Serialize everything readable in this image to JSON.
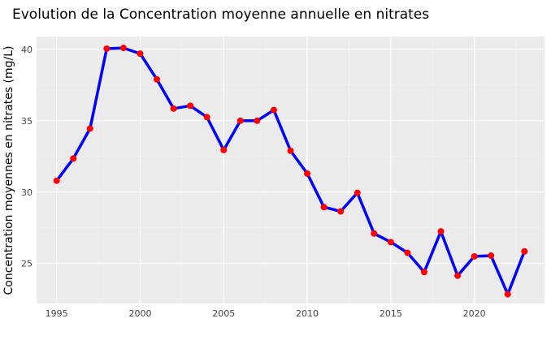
{
  "chart_data": {
    "type": "line",
    "title": "Evolution de la Concentration moyenne annuelle en nitrates",
    "xlabel": "",
    "ylabel": "Concentration moyennes en nitrates (mg/L)",
    "xlim": [
      1993.8,
      2024.2
    ],
    "ylim": [
      22.2,
      40.9
    ],
    "x_ticks": [
      1995,
      2000,
      2005,
      2010,
      2015,
      2020
    ],
    "y_ticks": [
      25,
      30,
      35,
      40
    ],
    "grid": true,
    "line_color": "#0000ff",
    "marker_color": "#ff0000",
    "plot_background": "#ebebeb",
    "series": [
      {
        "x": [
          1995,
          1996,
          1997,
          1998,
          1999,
          2000,
          2001,
          2002,
          2003,
          2004,
          2005,
          2006,
          2007,
          2008,
          2009,
          2010,
          2011,
          2012,
          2013,
          2014,
          2015,
          2016,
          2017,
          2018,
          2019,
          2020,
          2021,
          2022,
          2023
        ],
        "y": [
          30.8,
          32.35,
          34.45,
          40.05,
          40.1,
          39.7,
          37.9,
          35.85,
          36.05,
          35.25,
          32.95,
          35.0,
          35.0,
          35.75,
          32.9,
          31.3,
          28.95,
          28.65,
          29.95,
          27.1,
          26.5,
          25.75,
          24.4,
          27.25,
          24.15,
          25.5,
          25.55,
          22.85,
          25.85
        ]
      }
    ]
  }
}
